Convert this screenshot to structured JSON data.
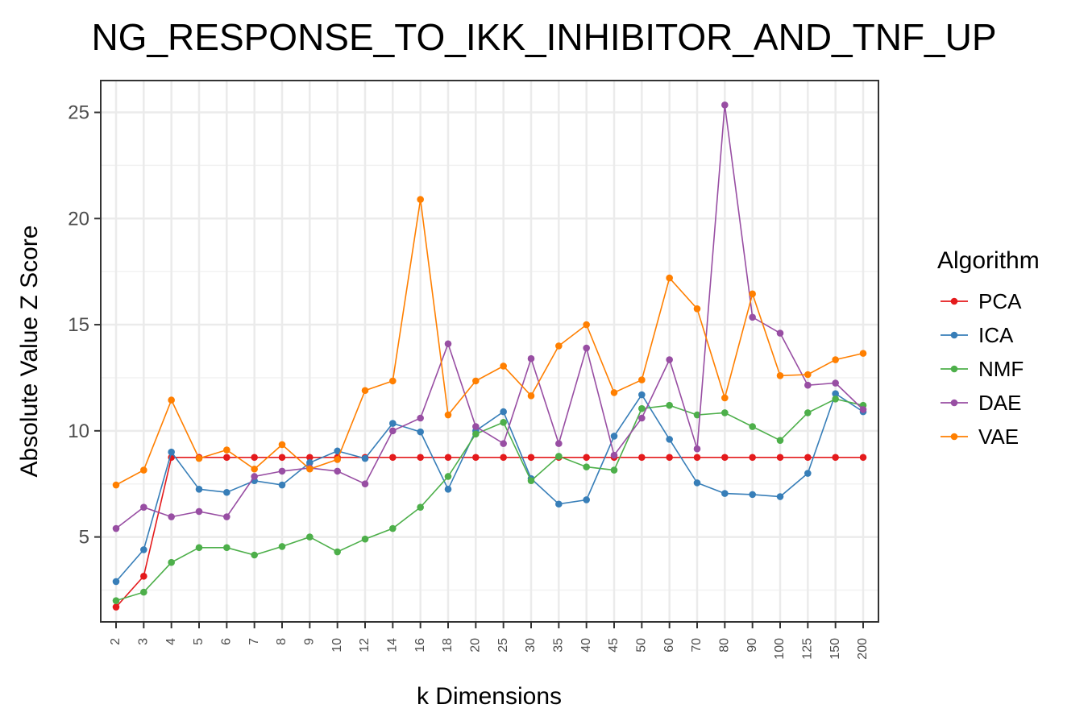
{
  "chart_data": {
    "type": "line",
    "title": "NG_RESPONSE_TO_IKK_INHIBITOR_AND_TNF_UP",
    "xlabel": "k Dimensions",
    "ylabel": "Absolute Value Z Score",
    "categories": [
      "2",
      "3",
      "4",
      "5",
      "6",
      "7",
      "8",
      "9",
      "10",
      "12",
      "14",
      "16",
      "18",
      "20",
      "25",
      "30",
      "35",
      "40",
      "45",
      "50",
      "60",
      "70",
      "80",
      "90",
      "100",
      "125",
      "150",
      "200"
    ],
    "yticks": [
      5,
      10,
      15,
      20,
      25
    ],
    "ylim": [
      1.0,
      26.5
    ],
    "grid": true,
    "legend_title": "Algorithm",
    "legend_position": "right",
    "series": [
      {
        "name": "PCA",
        "color": "#e41a1c",
        "values": [
          1.7,
          3.15,
          8.75,
          8.75,
          8.75,
          8.75,
          8.75,
          8.75,
          8.75,
          8.75,
          8.75,
          8.75,
          8.75,
          8.75,
          8.75,
          8.75,
          8.75,
          8.75,
          8.75,
          8.75,
          8.75,
          8.75,
          8.75,
          8.75,
          8.75,
          8.75,
          8.75,
          8.75
        ]
      },
      {
        "name": "ICA",
        "color": "#377eb8",
        "values": [
          2.9,
          4.4,
          9.0,
          7.25,
          7.1,
          7.65,
          7.45,
          8.5,
          9.05,
          8.7,
          10.35,
          9.95,
          7.25,
          10.0,
          10.9,
          7.75,
          6.55,
          6.75,
          9.75,
          11.7,
          9.6,
          7.55,
          7.05,
          7.0,
          6.9,
          8.0,
          11.75,
          10.9
        ]
      },
      {
        "name": "NMF",
        "color": "#4daf4a",
        "values": [
          2.0,
          2.4,
          3.8,
          4.5,
          4.5,
          4.15,
          4.55,
          5.0,
          4.3,
          4.9,
          5.4,
          6.4,
          7.85,
          9.85,
          10.4,
          7.65,
          8.8,
          8.3,
          8.15,
          11.05,
          11.2,
          10.75,
          10.85,
          10.2,
          9.55,
          10.85,
          11.5,
          11.2
        ]
      },
      {
        "name": "DAE",
        "color": "#984ea3",
        "values": [
          5.4,
          6.4,
          5.95,
          6.2,
          5.95,
          7.85,
          8.1,
          8.25,
          8.1,
          7.5,
          10.0,
          10.6,
          14.1,
          10.2,
          9.4,
          13.4,
          9.4,
          13.9,
          8.85,
          10.6,
          13.35,
          9.15,
          25.35,
          15.35,
          14.6,
          12.15,
          12.25,
          11.0
        ]
      },
      {
        "name": "VAE",
        "color": "#ff7f00",
        "values": [
          7.45,
          8.15,
          11.45,
          8.7,
          9.1,
          8.2,
          9.35,
          8.2,
          8.65,
          11.9,
          12.35,
          20.9,
          10.75,
          12.35,
          13.05,
          11.65,
          14.0,
          15.0,
          11.8,
          12.4,
          17.2,
          15.75,
          11.55,
          16.45,
          12.6,
          12.65,
          13.35,
          13.65
        ]
      }
    ]
  }
}
